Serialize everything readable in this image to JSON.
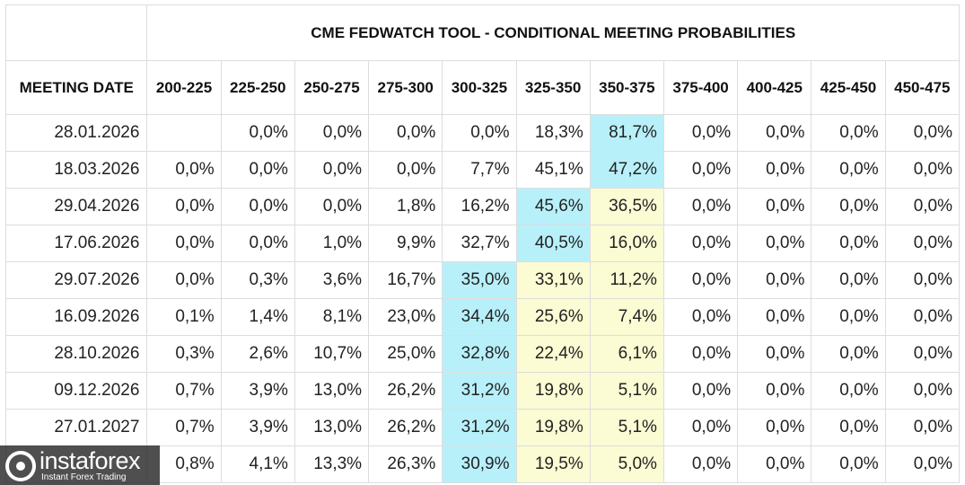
{
  "table": {
    "title": "CME FEDWATCH TOOL - CONDITIONAL MEETING PROBABILITIES",
    "header": [
      "MEETING DATE",
      "200-225",
      "225-250",
      "250-275",
      "275-300",
      "300-325",
      "325-350",
      "350-375",
      "375-400",
      "400-425",
      "425-450",
      "450-475"
    ],
    "rows": [
      [
        "28.01.2026",
        null,
        "0,0%",
        "0,0%",
        "0,0%",
        "0,0%",
        "18,3%",
        "81,7%",
        "0,0%",
        "0,0%",
        "0,0%",
        "0,0%"
      ],
      [
        "18.03.2026",
        "0,0%",
        "0,0%",
        "0,0%",
        "0,0%",
        "7,7%",
        "45,1%",
        "47,2%",
        "0,0%",
        "0,0%",
        "0,0%",
        "0,0%"
      ],
      [
        "29.04.2026",
        "0,0%",
        "0,0%",
        "0,0%",
        "1,8%",
        "16,2%",
        "45,6%",
        "36,5%",
        "0,0%",
        "0,0%",
        "0,0%",
        "0,0%"
      ],
      [
        "17.06.2026",
        "0,0%",
        "0,0%",
        "1,0%",
        "9,9%",
        "32,7%",
        "40,5%",
        "16,0%",
        "0,0%",
        "0,0%",
        "0,0%",
        "0,0%"
      ],
      [
        "29.07.2026",
        "0,0%",
        "0,3%",
        "3,6%",
        "16,7%",
        "35,0%",
        "33,1%",
        "11,2%",
        "0,0%",
        "0,0%",
        "0,0%",
        "0,0%"
      ],
      [
        "16.09.2026",
        "0,1%",
        "1,4%",
        "8,1%",
        "23,0%",
        "34,4%",
        "25,6%",
        "7,4%",
        "0,0%",
        "0,0%",
        "0,0%",
        "0,0%"
      ],
      [
        "28.10.2026",
        "0,3%",
        "2,6%",
        "10,7%",
        "25,0%",
        "32,8%",
        "22,4%",
        "6,1%",
        "0,0%",
        "0,0%",
        "0,0%",
        "0,0%"
      ],
      [
        "09.12.2026",
        "0,7%",
        "3,9%",
        "13,0%",
        "26,2%",
        "31,2%",
        "19,8%",
        "5,1%",
        "0,0%",
        "0,0%",
        "0,0%",
        "0,0%"
      ],
      [
        "27.01.2027",
        "0,7%",
        "3,9%",
        "13,0%",
        "26,2%",
        "31,2%",
        "19,8%",
        "5,1%",
        "0,0%",
        "0,0%",
        "0,0%",
        "0,0%"
      ],
      [
        null,
        "0,8%",
        "4,1%",
        "13,3%",
        "26,3%",
        "30,9%",
        "19,5%",
        "5,0%",
        "0,0%",
        "0,0%",
        "0,0%",
        "0,0%"
      ]
    ],
    "highlight_colors": {
      "cyan": "#b8f0fa",
      "yellow": "#fbfbd4"
    },
    "highlights": [
      {
        "cyan": [
          7
        ],
        "yellow": []
      },
      {
        "cyan": [
          7
        ],
        "yellow": []
      },
      {
        "cyan": [
          6
        ],
        "yellow": [
          7
        ]
      },
      {
        "cyan": [
          6
        ],
        "yellow": [
          7
        ]
      },
      {
        "cyan": [
          5
        ],
        "yellow": [
          6,
          7
        ]
      },
      {
        "cyan": [
          5
        ],
        "yellow": [
          6,
          7
        ]
      },
      {
        "cyan": [
          5
        ],
        "yellow": [
          6,
          7
        ]
      },
      {
        "cyan": [
          5
        ],
        "yellow": [
          6,
          7
        ]
      },
      {
        "cyan": [
          5
        ],
        "yellow": [
          6,
          7
        ]
      },
      {
        "cyan": [
          5
        ],
        "yellow": [
          6,
          7
        ]
      }
    ]
  },
  "watermark": {
    "brand": "instaforex",
    "tagline": "Instant Forex Trading"
  }
}
